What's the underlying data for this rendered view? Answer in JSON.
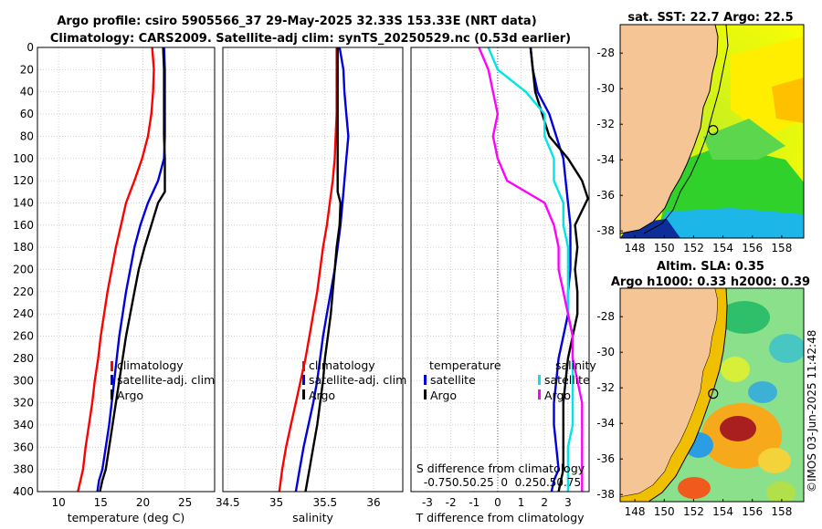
{
  "title": {
    "line1": "Argo profile: csiro 5905566_37 29-May-2025 32.33S 153.33E (NRT data)",
    "line2": "Climatology: CARS2009. Satellite-adj clim: synTS_20250529.nc (0.53d earlier)"
  },
  "colors": {
    "climatology": "#ff0000",
    "satellite": "#0000dd",
    "argo": "#000000",
    "sal_sat": "#00e5e5",
    "sal_argo": "#ff00ff",
    "land": "#f5c596"
  },
  "watermark": "©IMOS 03-Jun-2025 11:42:48",
  "chart_data": [
    {
      "type": "line",
      "name": "temperature profile",
      "xlabel": "temperature (deg C)",
      "ylabel": "depth",
      "xlim": [
        7.5,
        28.5
      ],
      "ylim": [
        0,
        400
      ],
      "xticks": [
        10,
        15,
        20,
        25
      ],
      "xtick_labels": [
        "10",
        "15",
        "20",
        "25"
      ],
      "yticks": [
        0,
        20,
        40,
        60,
        80,
        100,
        120,
        140,
        160,
        180,
        200,
        220,
        240,
        260,
        280,
        300,
        320,
        340,
        360,
        380,
        400
      ],
      "series": [
        {
          "name": "climatology",
          "color_key": "climatology",
          "x": [
            21.1,
            21.3,
            21.2,
            21.0,
            20.6,
            19.9,
            19.0,
            18.0,
            17.4,
            16.8,
            16.3,
            15.8,
            15.4,
            15.0,
            14.7,
            14.3,
            14.0,
            13.6,
            13.2,
            12.9,
            12.6,
            12.3
          ],
          "y": [
            0,
            20,
            40,
            60,
            80,
            100,
            120,
            140,
            160,
            180,
            200,
            220,
            240,
            260,
            280,
            300,
            320,
            340,
            360,
            380,
            390,
            400
          ]
        },
        {
          "name": "satellite-adj. clim",
          "color_key": "satellite",
          "x": [
            22.5,
            22.6,
            22.6,
            22.6,
            22.6,
            22.5,
            21.8,
            20.6,
            19.7,
            19.0,
            18.5,
            18.0,
            17.6,
            17.2,
            16.9,
            16.6,
            16.3,
            16.0,
            15.6,
            15.2,
            14.8,
            14.6
          ],
          "y": [
            0,
            20,
            40,
            60,
            80,
            100,
            120,
            140,
            160,
            180,
            200,
            220,
            240,
            260,
            280,
            300,
            320,
            340,
            360,
            380,
            390,
            400
          ]
        },
        {
          "name": "Argo",
          "color_key": "argo",
          "x": [
            22.4,
            22.5,
            22.5,
            22.5,
            22.5,
            22.6,
            22.6,
            21.8,
            21.0,
            20.2,
            19.5,
            19.0,
            18.5,
            18.0,
            17.6,
            17.2,
            16.8,
            16.4,
            16.0,
            15.6,
            15.2,
            14.9
          ],
          "y": [
            0,
            20,
            40,
            60,
            80,
            100,
            130,
            140,
            160,
            180,
            200,
            220,
            240,
            260,
            280,
            300,
            320,
            340,
            360,
            380,
            390,
            400
          ]
        }
      ],
      "legend": [
        "climatology",
        "satellite-adj. clim",
        "Argo"
      ]
    },
    {
      "type": "line",
      "name": "salinity profile",
      "xlabel": "salinity",
      "xlim": [
        34.45,
        36.3
      ],
      "ylim": [
        0,
        400
      ],
      "xticks": [
        34.5,
        35,
        35.5,
        36
      ],
      "xtick_labels": [
        "34.5",
        "35",
        "35.5",
        "36"
      ],
      "series": [
        {
          "name": "climatology",
          "color_key": "climatology",
          "x": [
            35.62,
            35.62,
            35.62,
            35.62,
            35.61,
            35.6,
            35.58,
            35.55,
            35.52,
            35.48,
            35.45,
            35.42,
            35.38,
            35.34,
            35.3,
            35.25,
            35.2,
            35.15,
            35.1,
            35.06,
            35.03
          ],
          "y": [
            0,
            20,
            40,
            60,
            80,
            100,
            120,
            140,
            160,
            180,
            200,
            220,
            240,
            260,
            280,
            300,
            320,
            340,
            360,
            380,
            400
          ]
        },
        {
          "name": "satellite-adj. clim",
          "color_key": "satellite",
          "x": [
            35.65,
            35.69,
            35.7,
            35.72,
            35.74,
            35.72,
            35.7,
            35.68,
            35.66,
            35.63,
            35.6,
            35.56,
            35.52,
            35.48,
            35.45,
            35.42,
            35.38,
            35.33,
            35.28,
            35.24,
            35.2
          ],
          "y": [
            0,
            20,
            40,
            60,
            80,
            100,
            120,
            140,
            160,
            180,
            200,
            220,
            240,
            260,
            280,
            300,
            320,
            340,
            360,
            380,
            400
          ]
        },
        {
          "name": "Argo",
          "color_key": "argo",
          "x": [
            35.63,
            35.63,
            35.63,
            35.63,
            35.63,
            35.63,
            35.63,
            35.66,
            35.65,
            35.62,
            35.6,
            35.58,
            35.56,
            35.53,
            35.5,
            35.48,
            35.45,
            35.42,
            35.38,
            35.34,
            35.3
          ],
          "y": [
            0,
            20,
            40,
            60,
            80,
            100,
            130,
            140,
            160,
            180,
            200,
            220,
            240,
            260,
            280,
            300,
            320,
            340,
            360,
            380,
            400
          ]
        }
      ],
      "legend": [
        "climatology",
        "satellite-adj. clim",
        "Argo"
      ]
    },
    {
      "type": "line",
      "name": "difference from climatology",
      "xlabel": "T difference from climatology",
      "xlabel_top": "S difference from climatology",
      "xlim": [
        -3.7,
        3.9
      ],
      "ylim": [
        0,
        400
      ],
      "xticks": [
        -3,
        -2,
        -1,
        0,
        1,
        2,
        3
      ],
      "xtick_labels": [
        "-3",
        "-2",
        "-1",
        "0",
        "1",
        "2",
        "3"
      ],
      "sal_tick_labels": "-0.750.50.25  0  0.250.50.75",
      "legend_temperature_heading": "temperature",
      "legend_salinity_heading": "salinity",
      "series": [
        {
          "name": "satellite",
          "group": "temperature",
          "color_key": "satellite",
          "x": [
            1.4,
            1.5,
            1.7,
            2.2,
            2.5,
            2.8,
            2.9,
            3.0,
            3.1,
            3.1,
            3.1,
            3.0,
            3.0,
            2.8,
            2.6,
            2.5,
            2.4,
            2.4,
            2.5,
            2.6,
            2.4,
            2.3
          ],
          "y": [
            0,
            20,
            40,
            60,
            80,
            100,
            120,
            140,
            160,
            180,
            200,
            220,
            240,
            260,
            280,
            300,
            320,
            340,
            360,
            380,
            390,
            400
          ]
        },
        {
          "name": "Argo",
          "group": "temperature",
          "color_key": "argo",
          "x": [
            1.4,
            1.5,
            1.6,
            1.9,
            2.2,
            3.0,
            3.6,
            3.85,
            3.3,
            3.4,
            3.3,
            3.4,
            3.4,
            3.2,
            3.0,
            2.9,
            2.8,
            2.8,
            2.8,
            2.8,
            2.7,
            2.6
          ],
          "y": [
            0,
            20,
            40,
            60,
            80,
            100,
            120,
            136,
            160,
            180,
            200,
            220,
            240,
            260,
            280,
            300,
            320,
            340,
            360,
            380,
            390,
            400
          ]
        },
        {
          "name": "satellite",
          "group": "salinity",
          "color_key": "sal_sat",
          "x": [
            -0.1,
            0.0,
            0.3,
            0.5,
            0.5,
            0.6,
            0.6,
            0.7,
            0.7,
            0.75,
            0.75,
            0.75,
            0.75,
            0.8,
            0.8,
            0.8,
            0.8,
            0.8,
            0.75,
            0.75,
            0.75
          ],
          "y": [
            0,
            20,
            40,
            60,
            80,
            100,
            120,
            140,
            160,
            180,
            200,
            220,
            240,
            260,
            280,
            300,
            320,
            340,
            360,
            380,
            400
          ]
        },
        {
          "name": "Argo",
          "group": "salinity",
          "color_key": "sal_argo",
          "x": [
            -0.2,
            -0.1,
            -0.05,
            0.0,
            -0.05,
            0.0,
            0.1,
            0.5,
            0.6,
            0.65,
            0.65,
            0.7,
            0.75,
            0.8,
            0.8,
            0.85,
            0.9,
            0.9,
            0.9,
            0.9,
            0.9
          ],
          "y": [
            0,
            20,
            40,
            60,
            80,
            100,
            120,
            140,
            160,
            180,
            200,
            220,
            240,
            260,
            280,
            300,
            320,
            340,
            360,
            380,
            400
          ]
        }
      ]
    },
    {
      "type": "heatmap",
      "name": "satellite SST map",
      "title": "sat. SST: 22.7 Argo: 22.5",
      "xlim": [
        147,
        159.5
      ],
      "ylim": [
        -38.4,
        -26.4
      ],
      "xticks": [
        148,
        150,
        152,
        154,
        156,
        158
      ],
      "yticks": [
        -28,
        -30,
        -32,
        -34,
        -36,
        -38
      ],
      "argo_position": [
        153.33,
        -32.33
      ]
    },
    {
      "type": "heatmap",
      "name": "altimetry SLA map",
      "title_line1": "Altim. SLA: 0.35",
      "title_line2": "Argo h1000: 0.33 h2000: 0.39",
      "xlim": [
        147,
        159.5
      ],
      "ylim": [
        -38.4,
        -26.4
      ],
      "xticks": [
        148,
        150,
        152,
        154,
        156,
        158
      ],
      "yticks": [
        -28,
        -30,
        -32,
        -34,
        -36,
        -38
      ],
      "argo_position": [
        153.33,
        -32.33
      ]
    }
  ]
}
